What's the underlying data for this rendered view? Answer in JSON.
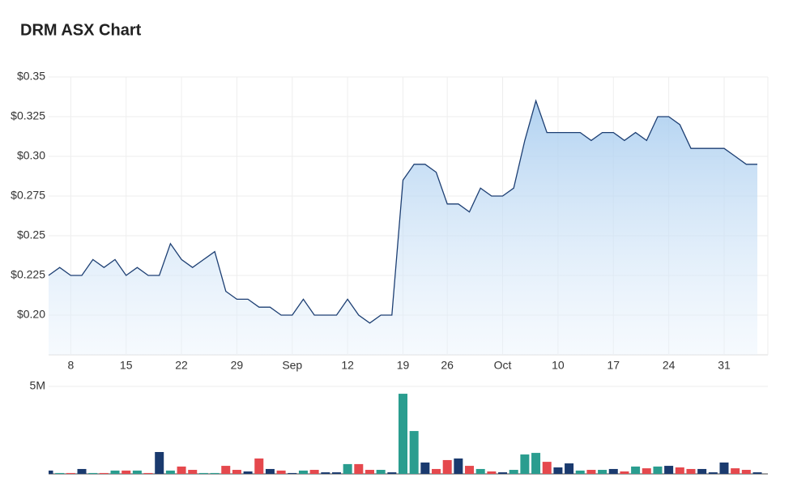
{
  "chart_data": [
    {
      "type": "area",
      "title": "DRM ASX Chart",
      "categories": [
        null,
        null,
        "8",
        null,
        null,
        null,
        null,
        "15",
        null,
        null,
        null,
        null,
        "22",
        null,
        null,
        null,
        null,
        "29",
        null,
        null,
        null,
        null,
        "Sep",
        null,
        null,
        null,
        null,
        "12",
        null,
        null,
        null,
        null,
        "19",
        null,
        null,
        null,
        "26",
        null,
        null,
        null,
        null,
        "Oct",
        null,
        null,
        null,
        null,
        "10",
        null,
        null,
        null,
        null,
        "17",
        null,
        null,
        null,
        null,
        "24",
        null,
        null,
        null,
        null,
        "31",
        null,
        null,
        null
      ],
      "series": [
        {
          "name": "DRM",
          "color": "#1d3f73",
          "values": [
            0.225,
            0.23,
            0.225,
            0.225,
            0.235,
            0.23,
            0.235,
            0.225,
            0.23,
            0.225,
            0.225,
            0.245,
            0.235,
            0.23,
            0.235,
            0.24,
            0.215,
            0.21,
            0.21,
            0.205,
            0.205,
            0.2,
            0.2,
            0.21,
            0.2,
            0.2,
            0.2,
            0.21,
            0.2,
            0.195,
            0.2,
            0.2,
            0.285,
            0.295,
            0.295,
            0.29,
            0.27,
            0.27,
            0.265,
            0.28,
            0.275,
            0.275,
            0.28,
            0.31,
            0.335,
            0.315,
            0.315,
            0.315,
            0.315,
            0.31,
            0.315,
            0.315,
            0.31,
            0.315,
            0.31,
            0.325,
            0.325,
            0.32,
            0.305,
            0.305,
            0.305,
            0.305,
            0.3,
            0.295,
            0.295
          ]
        }
      ],
      "ylim": [
        0.175,
        0.35
      ],
      "yticks": [
        {
          "value": 0.2,
          "label": "$0.20"
        },
        {
          "value": 0.225,
          "label": "$0.225"
        },
        {
          "value": 0.25,
          "label": "$0.25"
        },
        {
          "value": 0.275,
          "label": "$0.275"
        },
        {
          "value": 0.3,
          "label": "$0.30"
        },
        {
          "value": 0.325,
          "label": "$0.325"
        },
        {
          "value": 0.35,
          "label": "$0.35"
        }
      ],
      "grid": true
    },
    {
      "type": "bar",
      "values": [
        190000,
        50000,
        50000,
        280000,
        50000,
        50000,
        190000,
        190000,
        190000,
        50000,
        1250000,
        190000,
        420000,
        230000,
        50000,
        50000,
        460000,
        230000,
        140000,
        880000,
        280000,
        190000,
        50000,
        190000,
        230000,
        90000,
        90000,
        560000,
        560000,
        230000,
        230000,
        90000,
        4580000,
        2450000,
        650000,
        280000,
        790000,
        880000,
        460000,
        280000,
        140000,
        90000,
        230000,
        1110000,
        1200000,
        690000,
        370000,
        600000,
        190000,
        230000,
        230000,
        280000,
        140000,
        420000,
        320000,
        420000,
        460000,
        370000,
        280000,
        280000,
        90000,
        650000,
        320000,
        230000,
        90000
      ],
      "colors": [
        "#1a3a6e",
        "#2a9d8f",
        "#e5484d",
        "#1a3a6e",
        "#2a9d8f",
        "#e5484d",
        "#2a9d8f",
        "#e5484d",
        "#2a9d8f",
        "#e5484d",
        "#1a3a6e",
        "#2a9d8f",
        "#e5484d",
        "#e5484d",
        "#2a9d8f",
        "#2a9d8f",
        "#e5484d",
        "#e5484d",
        "#1a3a6e",
        "#e5484d",
        "#1a3a6e",
        "#e5484d",
        "#1a3a6e",
        "#2a9d8f",
        "#e5484d",
        "#1a3a6e",
        "#1a3a6e",
        "#2a9d8f",
        "#e5484d",
        "#e5484d",
        "#2a9d8f",
        "#1a3a6e",
        "#2a9d8f",
        "#2a9d8f",
        "#1a3a6e",
        "#e5484d",
        "#e5484d",
        "#1a3a6e",
        "#e5484d",
        "#2a9d8f",
        "#e5484d",
        "#1a3a6e",
        "#2a9d8f",
        "#2a9d8f",
        "#2a9d8f",
        "#e5484d",
        "#1a3a6e",
        "#1a3a6e",
        "#2a9d8f",
        "#e5484d",
        "#2a9d8f",
        "#1a3a6e",
        "#e5484d",
        "#2a9d8f",
        "#e5484d",
        "#2a9d8f",
        "#1a3a6e",
        "#e5484d",
        "#e5484d",
        "#1a3a6e",
        "#1a3a6e",
        "#1a3a6e",
        "#e5484d",
        "#e5484d",
        "#1a3a6e"
      ],
      "ylim": [
        0,
        5000000
      ],
      "yticks": [
        {
          "value": 5000000,
          "label": "5M"
        }
      ]
    }
  ]
}
